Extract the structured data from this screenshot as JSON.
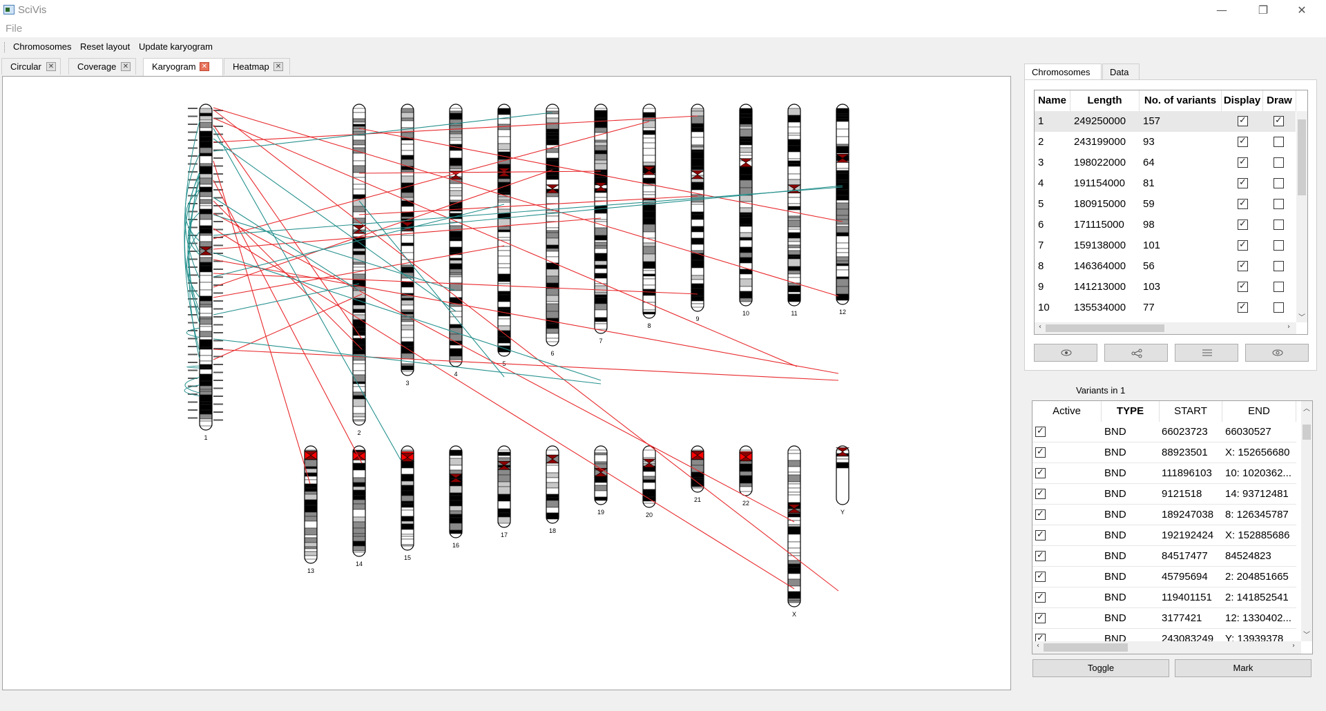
{
  "app": {
    "title": "SciVis"
  },
  "menu": {
    "file": "File"
  },
  "toolbar": {
    "chromosomes": "Chromosomes",
    "reset_layout": "Reset layout",
    "update_karyogram": "Update karyogram"
  },
  "main_tabs": [
    {
      "label": "Circular"
    },
    {
      "label": "Coverage"
    },
    {
      "label": "Karyogram"
    },
    {
      "label": "Heatmap"
    }
  ],
  "active_main_tab": "Karyogram",
  "karyogram": {
    "top_row": [
      "1",
      "2",
      "3",
      "4",
      "5",
      "6",
      "7",
      "8",
      "9",
      "10",
      "11",
      "12"
    ],
    "bottom_row": [
      "13",
      "14",
      "15",
      "16",
      "17",
      "18",
      "19",
      "20",
      "21",
      "22",
      "X",
      "Y"
    ],
    "colors": {
      "translocation": "#e8282b",
      "intra": "#24908d",
      "centromere": "#8b0000",
      "heterochromatin": "#ff0000"
    }
  },
  "side_tabs": [
    {
      "label": "Chromosomes"
    },
    {
      "label": "Data"
    }
  ],
  "chromosome_table": {
    "headers": [
      "Name",
      "Length",
      "No. of variants",
      "Display",
      "Draw"
    ],
    "rows": [
      {
        "name": "1",
        "length": "249250000",
        "variants": "157",
        "display": true,
        "draw": true
      },
      {
        "name": "2",
        "length": "243199000",
        "variants": "93",
        "display": true,
        "draw": false
      },
      {
        "name": "3",
        "length": "198022000",
        "variants": "64",
        "display": true,
        "draw": false
      },
      {
        "name": "4",
        "length": "191154000",
        "variants": "81",
        "display": true,
        "draw": false
      },
      {
        "name": "5",
        "length": "180915000",
        "variants": "59",
        "display": true,
        "draw": false
      },
      {
        "name": "6",
        "length": "171115000",
        "variants": "98",
        "display": true,
        "draw": false
      },
      {
        "name": "7",
        "length": "159138000",
        "variants": "101",
        "display": true,
        "draw": false
      },
      {
        "name": "8",
        "length": "146364000",
        "variants": "56",
        "display": true,
        "draw": false
      },
      {
        "name": "9",
        "length": "141213000",
        "variants": "103",
        "display": true,
        "draw": false
      },
      {
        "name": "10",
        "length": "135534000",
        "variants": "77",
        "display": true,
        "draw": false
      }
    ]
  },
  "variants": {
    "title": "Variants in 1",
    "headers": [
      "Active",
      "TYPE",
      "START",
      "END"
    ],
    "rows": [
      {
        "active": true,
        "type": "BND",
        "start": "66023723",
        "end": "66030527"
      },
      {
        "active": true,
        "type": "BND",
        "start": "88923501",
        "end": "X: 152656680"
      },
      {
        "active": true,
        "type": "BND",
        "start": "111896103",
        "end": "10: 1020362..."
      },
      {
        "active": true,
        "type": "BND",
        "start": "9121518",
        "end": "14: 93712481"
      },
      {
        "active": true,
        "type": "BND",
        "start": "189247038",
        "end": "8: 126345787"
      },
      {
        "active": true,
        "type": "BND",
        "start": "192192424",
        "end": "X: 152885686"
      },
      {
        "active": true,
        "type": "BND",
        "start": "84517477",
        "end": "84524823"
      },
      {
        "active": true,
        "type": "BND",
        "start": "45795694",
        "end": "2: 204851665"
      },
      {
        "active": true,
        "type": "BND",
        "start": "119401151",
        "end": "2: 141852541"
      },
      {
        "active": true,
        "type": "BND",
        "start": "3177421",
        "end": "12: 1330402..."
      },
      {
        "active": true,
        "type": "BND",
        "start": "243083249",
        "end": "Y: 13939378"
      }
    ]
  },
  "buttons": {
    "toggle": "Toggle",
    "mark": "Mark"
  }
}
